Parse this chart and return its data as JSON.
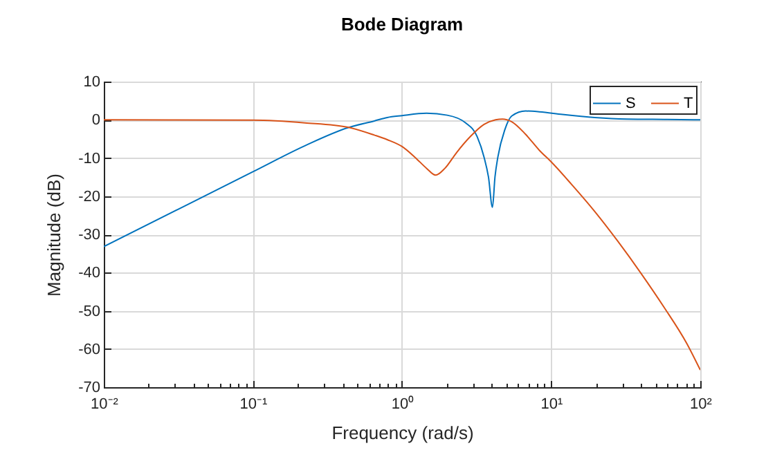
{
  "chart_data": {
    "type": "line",
    "title": "Bode Diagram",
    "xlabel": "Frequency (rad/s)",
    "ylabel": "Magnitude (dB)",
    "log": "x",
    "xlim": [
      0.01,
      100
    ],
    "xticks": [
      {
        "value": 0.01,
        "label": "10⁻²"
      },
      {
        "value": 0.02,
        "label": null
      },
      {
        "value": 0.03,
        "label": null
      },
      {
        "value": 0.04,
        "label": null
      },
      {
        "value": 0.05,
        "label": null
      },
      {
        "value": 0.06,
        "label": null
      },
      {
        "value": 0.07,
        "label": null
      },
      {
        "value": 0.08,
        "label": null
      },
      {
        "value": 0.09,
        "label": null
      },
      {
        "value": 0.1,
        "label": "10⁻¹"
      },
      {
        "value": 0.2,
        "label": null
      },
      {
        "value": 0.3,
        "label": null
      },
      {
        "value": 0.4,
        "label": null
      },
      {
        "value": 0.5,
        "label": null
      },
      {
        "value": 0.6,
        "label": null
      },
      {
        "value": 0.7,
        "label": null
      },
      {
        "value": 0.8,
        "label": null
      },
      {
        "value": 0.9,
        "label": null
      },
      {
        "value": 1,
        "label": "10⁰"
      },
      {
        "value": 2,
        "label": null
      },
      {
        "value": 3,
        "label": null
      },
      {
        "value": 4,
        "label": null
      },
      {
        "value": 5,
        "label": null
      },
      {
        "value": 6,
        "label": null
      },
      {
        "value": 7,
        "label": null
      },
      {
        "value": 8,
        "label": null
      },
      {
        "value": 9,
        "label": null
      },
      {
        "value": 10,
        "label": "10¹"
      },
      {
        "value": 20,
        "label": null
      },
      {
        "value": 30,
        "label": null
      },
      {
        "value": 40,
        "label": null
      },
      {
        "value": 50,
        "label": null
      },
      {
        "value": 60,
        "label": null
      },
      {
        "value": 70,
        "label": null
      },
      {
        "value": 80,
        "label": null
      },
      {
        "value": 90,
        "label": null
      },
      {
        "value": 100,
        "label": "10²"
      }
    ],
    "ylim": [
      -70,
      10
    ],
    "yticks": [
      -70,
      -60,
      -50,
      -40,
      -30,
      -20,
      -10,
      0,
      10
    ],
    "grid": true,
    "legend": "top right",
    "marker": "none",
    "series": [
      {
        "name": "S",
        "color": "#0072bd",
        "x": [
          0.01,
          0.0316,
          0.1,
          0.223,
          0.44,
          0.652,
          0.796,
          1.0,
          1.46,
          2.01,
          2.67,
          3.19,
          3.55,
          3.8,
          4.04,
          4.2,
          4.39,
          4.89,
          5.44,
          6.74,
          8.34,
          11.9,
          19.6,
          32.2,
          60,
          100
        ],
        "values": [
          -33.2,
          -23.4,
          -13.6,
          -6.8,
          -2.0,
          -0.3,
          0.6,
          1.1,
          1.7,
          1.2,
          -0.8,
          -4.4,
          -9.8,
          -15.0,
          -22.9,
          -15.0,
          -9.8,
          -2.6,
          1.0,
          2.3,
          2.1,
          1.4,
          0.6,
          0.2,
          0.1,
          0.0
        ]
      },
      {
        "name": "T",
        "color": "#d95319",
        "x": [
          0.01,
          0.1,
          0.223,
          0.44,
          0.652,
          0.796,
          1.0,
          1.22,
          1.46,
          1.68,
          1.94,
          2.32,
          2.87,
          3.55,
          4.24,
          4.72,
          5.44,
          6.74,
          8.34,
          10,
          13.7,
          19.6,
          28.0,
          39.9,
          57.0,
          81.3,
          100
        ],
        "values": [
          0.0,
          -0.1,
          -0.8,
          -2.0,
          -4.0,
          -5.2,
          -7.0,
          -9.8,
          -12.7,
          -14.5,
          -12.7,
          -8.6,
          -4.4,
          -1.2,
          0.0,
          0.2,
          -0.5,
          -3.8,
          -8.0,
          -11.0,
          -16.9,
          -24.0,
          -31.8,
          -40.1,
          -49.0,
          -58.6,
          -65.5
        ]
      }
    ]
  }
}
